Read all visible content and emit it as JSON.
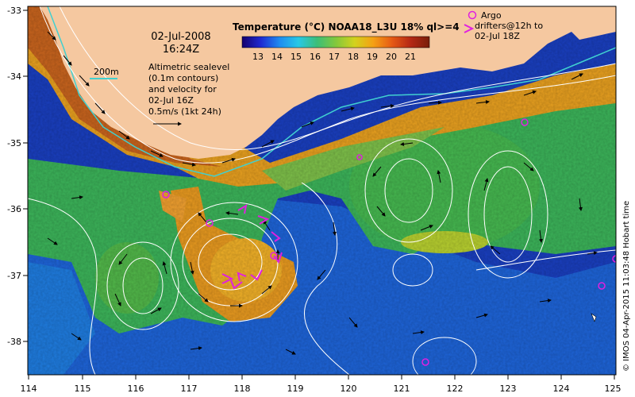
{
  "map": {
    "date": "02-Jul-2008",
    "time": "16:24Z",
    "isobath_label": "200m",
    "altimetry_lines": [
      "Altimetric sealevel",
      "(0.1m contours)",
      "and velocity for",
      "02-Jul 16Z"
    ],
    "velocity_scale": "0.5m/s (1kt 24h)",
    "colorbar_title": "Temperature (°C) NOAA18_L3U 18% ql>=4",
    "colorbar_ticks": [
      "13",
      "14",
      "15",
      "16",
      "17",
      "18",
      "19",
      "20",
      "21"
    ],
    "colorbar_colors": [
      "#15006e",
      "#1e2ad2",
      "#1e8cf0",
      "#28c8e6",
      "#3cbe78",
      "#82c83c",
      "#d2d21e",
      "#f5a014",
      "#e65a14",
      "#b42814",
      "#781e0a"
    ],
    "argo_lines": [
      "Argo",
      "drifters@12h to",
      "02-Jul 18Z"
    ],
    "credit": "© IMOS 04-Apr-2015 11:03:48 Hobart time",
    "x_ticks": [
      "114",
      "115",
      "116",
      "117",
      "118",
      "119",
      "120",
      "121",
      "122",
      "123",
      "124",
      "125"
    ],
    "y_ticks": [
      "-33",
      "-34",
      "-35",
      "-36",
      "-37",
      "-38"
    ],
    "colors": {
      "land": "#f5c8a0",
      "argo": "#e020e0",
      "isobath": "#40d0d0",
      "contour": "#ffffff"
    }
  }
}
